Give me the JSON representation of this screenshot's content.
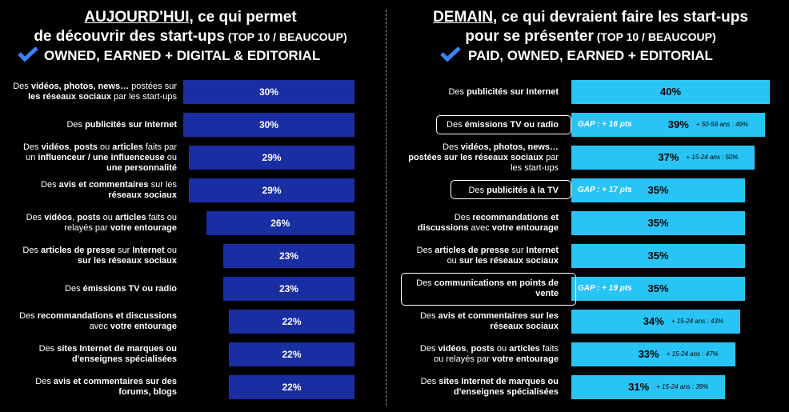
{
  "left": {
    "title_line1_underlined": "AUJOURD'HUI",
    "title_line1_rest": ", ce qui permet",
    "title_line2": "de découvrir des start-ups",
    "title_line2_small": " (TOP 10 / BEAUCOUP)",
    "subtitle": "OWNED, EARNED + DIGITAL & EDITORIAL"
  },
  "right": {
    "title_line1_underlined": "DEMAIN",
    "title_line1_rest": ", ce qui devraient faire les start-ups",
    "title_line2": "pour se présenter",
    "title_line2_small": " (TOP 10 / BEAUCOUP)",
    "subtitle": "PAID, OWNED, EARNED + EDITORIAL"
  },
  "colors": {
    "left_bar": "#1a2ea3",
    "right_bar": "#29c4f6",
    "check": "#3b82f6",
    "background": "#000000"
  },
  "chart_data": [
    {
      "type": "bar",
      "orientation": "horizontal",
      "categories": [
        "Des vidéos, photos, news… postées sur les réseaux sociaux par les start-ups",
        "Des publicités sur Internet",
        "Des vidéos, posts ou articles faits par un influenceur / une influenceuse ou une personnalité",
        "Des avis et commentaires sur les réseaux sociaux",
        "Des vidéos, posts ou articles faits ou relayés par votre entourage",
        "Des articles de presse sur Internet ou sur les réseaux sociaux",
        "Des émissions TV ou radio",
        "Des recommandations et discussions avec votre entourage",
        "Des sites Internet de marques ou d'enseignes spécialisées",
        "Des avis et commentaires sur des forums, blogs"
      ],
      "label_lines": [
        [
          "Des <b>vidéos, photos, news…</b> postées sur",
          "<b>les réseaux sociaux</b> par les start-ups"
        ],
        [
          "Des <b>publicités sur Internet</b>"
        ],
        [
          "Des <b>vidéos</b>, <b>posts</b> ou <b>articles</b>  faits par",
          "un <b>influenceur / une influenceuse</b> ou",
          "<b>une personnalité</b>"
        ],
        [
          "Des <b>avis et commentaires</b> sur les",
          "<b>réseaux sociaux</b>"
        ],
        [
          "Des <b>vidéos</b>, <b>posts</b> ou <b>articles</b> faits ou",
          "relayés par <b>votre entourage</b>"
        ],
        [
          "Des <b>articles de presse</b> sur <b>Internet</b> ou",
          "<b>sur les réseaux sociaux</b>"
        ],
        [
          "Des <b>émissions TV ou radio</b>"
        ],
        [
          "Des <b>recommandations et discussions</b>",
          "avec <b>votre entourage</b>"
        ],
        [
          "Des <b>sites Internet de marques ou</b>",
          "<b>d'enseignes spécialisées</b>"
        ],
        [
          "Des <b>avis et commentaires sur des</b>",
          "<b>forums, blogs</b>"
        ]
      ],
      "values": [
        30,
        30,
        29,
        29,
        26,
        23,
        23,
        22,
        22,
        22
      ],
      "value_labels": [
        "30%",
        "30%",
        "29%",
        "29%",
        "26%",
        "23%",
        "23%",
        "22%",
        "22%",
        "22%"
      ]
    },
    {
      "type": "bar",
      "orientation": "horizontal",
      "categories": [
        "Des publicités sur Internet",
        "Des émissions TV ou radio",
        "Des vidéos, photos, news… postées sur les réseaux sociaux par les start-ups",
        "Des publicités à la TV",
        "Des recommandations et discussions avec votre entourage",
        "Des articles de presse sur Internet ou sur les réseaux sociaux",
        "Des communications en points de vente",
        "Des avis et commentaires sur les réseaux sociaux",
        "Des vidéos, posts ou articles faits ou relayés par votre entourage",
        "Des sites Internet de marques ou d'enseignes spécialisées"
      ],
      "label_lines": [
        [
          "Des <b>publicités sur Internet</b>"
        ],
        [
          "Des <b>émissions TV ou radio</b>"
        ],
        [
          "Des <b>vidéos, photos, news…</b>",
          "<b>postées sur les réseaux sociaux</b> par",
          "les start-ups"
        ],
        [
          "Des <b>publicités à la TV</b>"
        ],
        [
          "Des <b>recommandations et</b>",
          "<b>discussions</b> avec <b>votre entourage</b>"
        ],
        [
          "Des <b>articles de presse</b> sur <b>Internet</b>",
          "ou <b>sur les réseaux sociaux</b>"
        ],
        [
          "Des <b>communications en points de</b>",
          "<b>vente</b>"
        ],
        [
          "Des <b>avis et commentaires sur les</b>",
          "<b>réseaux sociaux</b>"
        ],
        [
          "Des <b>vidéos</b>, <b>posts</b> ou <b>articles</b> faits",
          "ou relayés par <b>votre entourage</b>"
        ],
        [
          "Des <b>sites Internet de marques ou</b>",
          "<b>d'enseignes spécialisées</b>"
        ]
      ],
      "values": [
        40,
        39,
        37,
        35,
        35,
        35,
        35,
        34,
        33,
        31
      ],
      "value_labels": [
        "40%",
        "39%",
        "37%",
        "35%",
        "35%",
        "35%",
        "35%",
        "34%",
        "33%",
        "31%"
      ],
      "annotations": [
        "",
        "+ 50-59 ans : 49%",
        "+ 15-24 ans : 50%",
        "",
        "",
        "",
        "",
        "+ 15-24 ans : 43%",
        "+ 15-24 ans : 47%",
        "+ 15-24 ans : 39%"
      ],
      "gap_labels": [
        "",
        "GAP : + 16 pts",
        "",
        "GAP : + 17 pts",
        "",
        "",
        "GAP : + 19 pts",
        "",
        "",
        ""
      ]
    }
  ]
}
